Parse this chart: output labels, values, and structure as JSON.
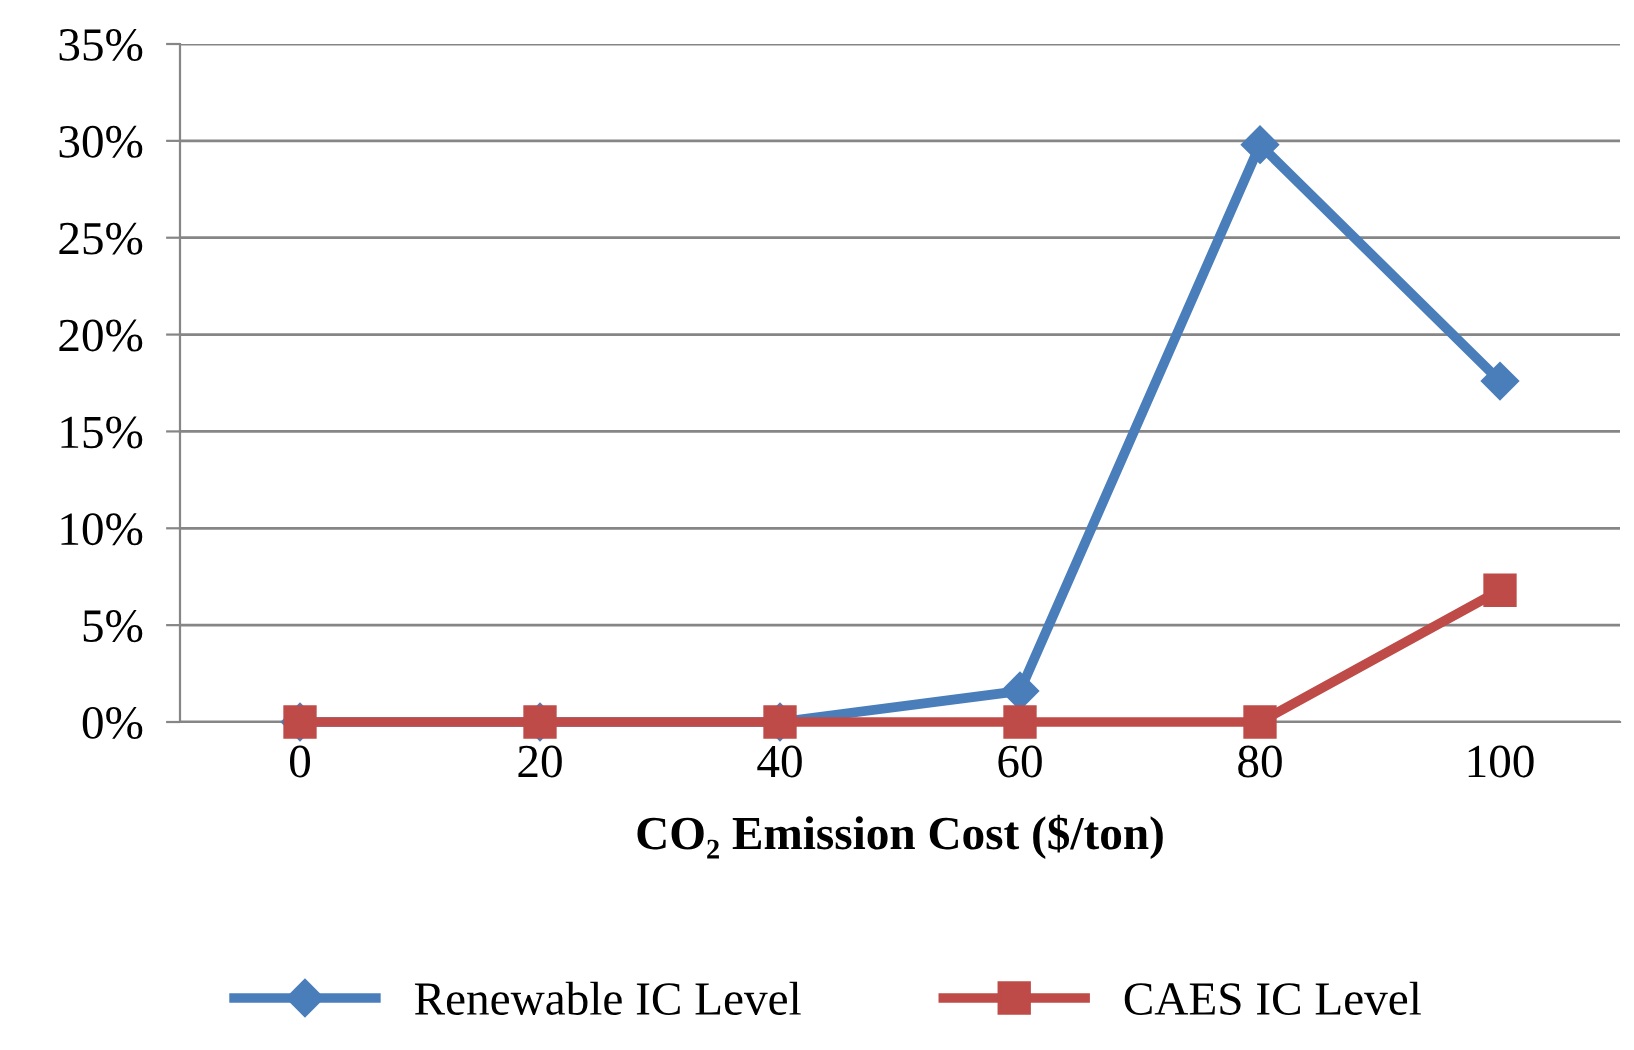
{
  "chart_data": {
    "type": "line",
    "xlabel": "CO₂ Emission Cost ($/ton)",
    "categories": [
      "0",
      "20",
      "40",
      "60",
      "80",
      "100"
    ],
    "series": [
      {
        "name": "Renewable IC Level",
        "color": "#4a7ebb",
        "marker": "diamond",
        "values": [
          0,
          0,
          0,
          1.6,
          29.8,
          17.6
        ]
      },
      {
        "name": "CAES IC Level",
        "color": "#be4b48",
        "marker": "square",
        "values": [
          0,
          0,
          0,
          0,
          0,
          6.8
        ]
      }
    ],
    "ylim": [
      0,
      35
    ],
    "yticks": [
      {
        "value": 0,
        "label": "0%"
      },
      {
        "value": 5,
        "label": "5%"
      },
      {
        "value": 10,
        "label": "10%"
      },
      {
        "value": 15,
        "label": "15%"
      },
      {
        "value": 20,
        "label": "20%"
      },
      {
        "value": 25,
        "label": "25%"
      },
      {
        "value": 30,
        "label": "30%"
      },
      {
        "value": 35,
        "label": "35%"
      }
    ],
    "grid": "y",
    "legend": "bottom",
    "line_style": "solid"
  }
}
